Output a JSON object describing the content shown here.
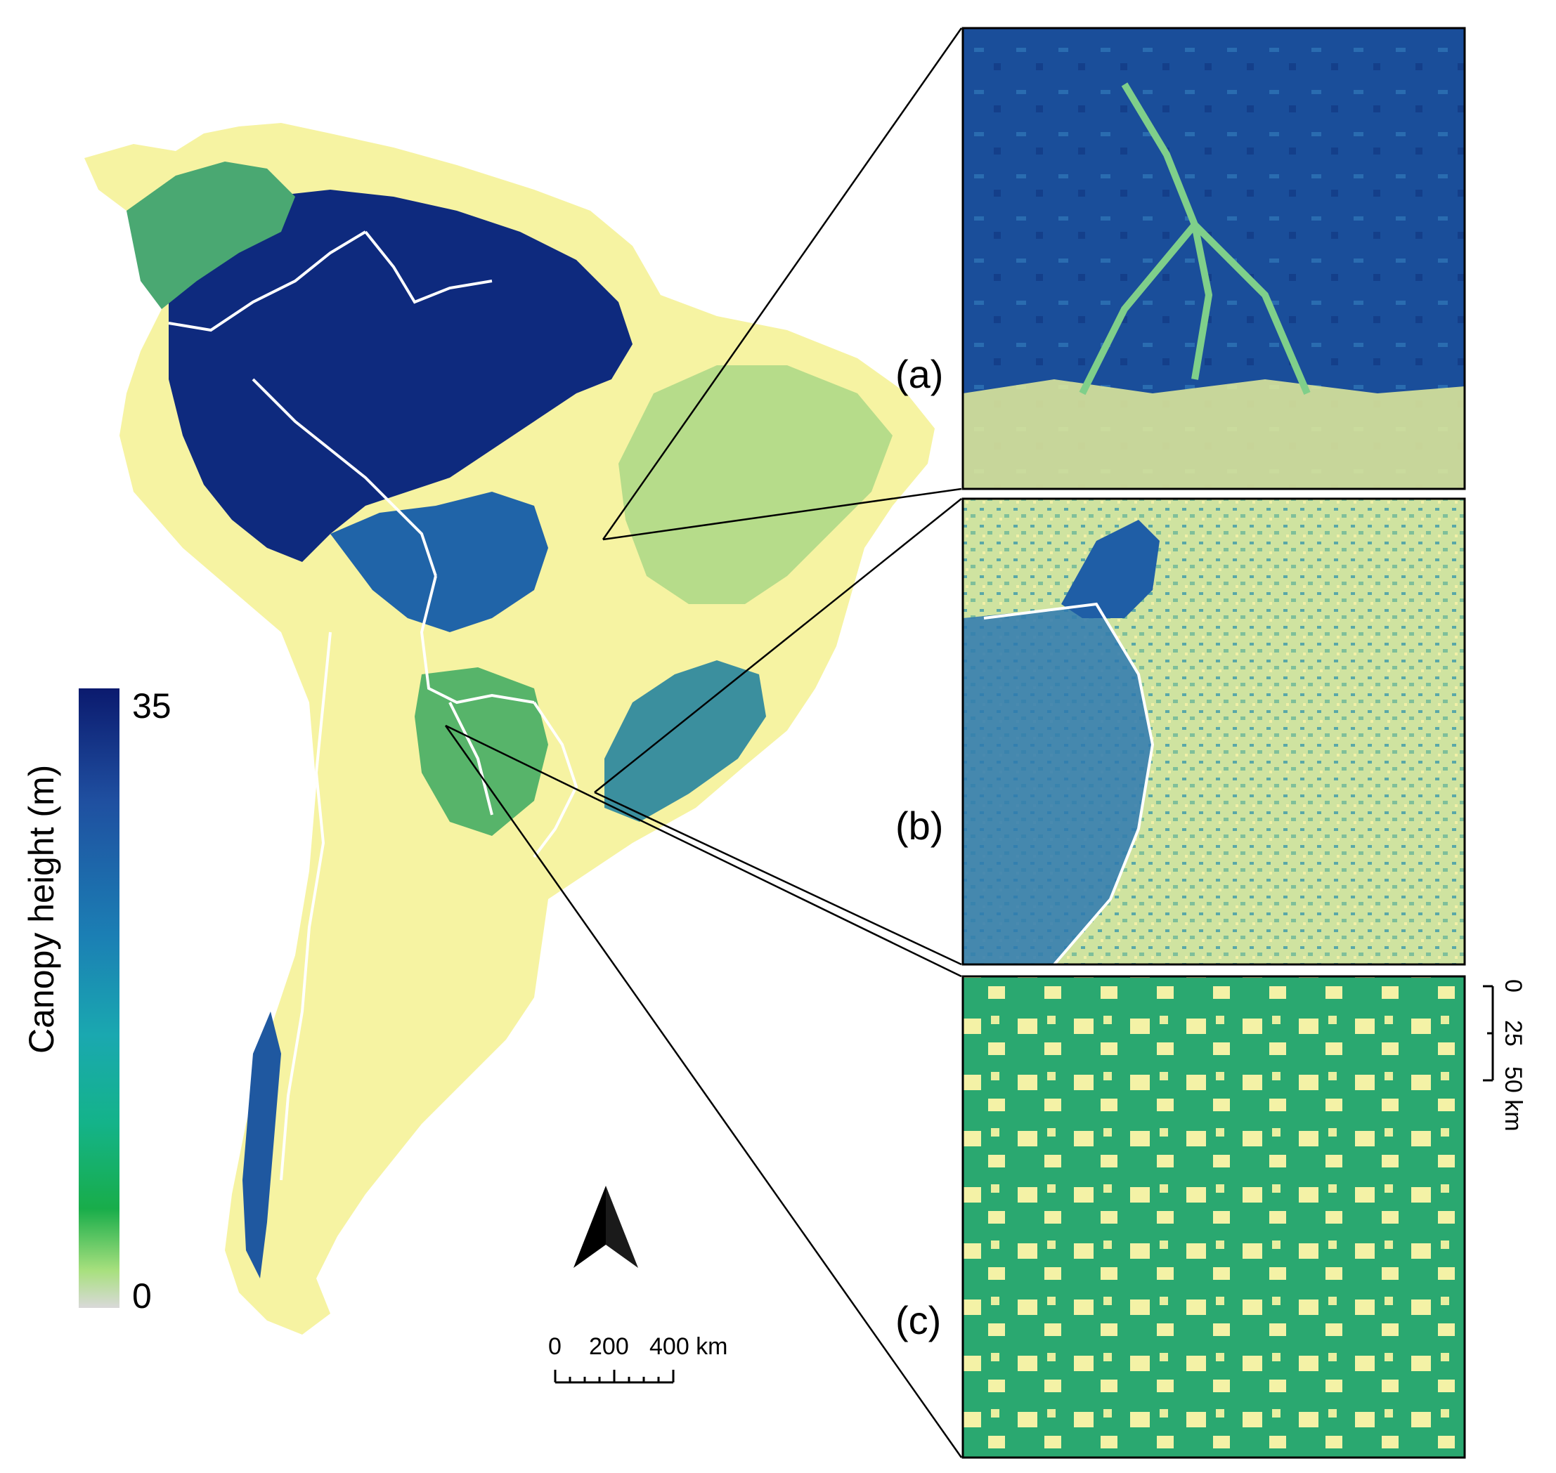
{
  "colorbar": {
    "title": "Canopy height (m)",
    "max_label": "35",
    "min_label": "0",
    "stops": [
      "#0b1a6e",
      "#1f4fa0",
      "#1b7fb4",
      "#1aa8b0",
      "#14b38a",
      "#18ad4a",
      "#a8e07e",
      "#d9d9d9"
    ]
  },
  "panels": {
    "a": {
      "label": "(a)"
    },
    "b": {
      "label": "(b)"
    },
    "c": {
      "label": "(c)"
    }
  },
  "main_scalebar": {
    "labels": [
      "0",
      "200",
      "400 km"
    ]
  },
  "inset_scalebar": {
    "labels": [
      "0",
      "25",
      "50 km"
    ]
  },
  "map_colors": {
    "forest_dense": "#0e2a7e",
    "forest_mid": "#1e5aa0",
    "forest_light": "#2a8aa8",
    "green": "#4cb06a",
    "light_green": "#a9d98a",
    "pale_yellow": "#f5f3a0",
    "border": "#ffffff"
  }
}
